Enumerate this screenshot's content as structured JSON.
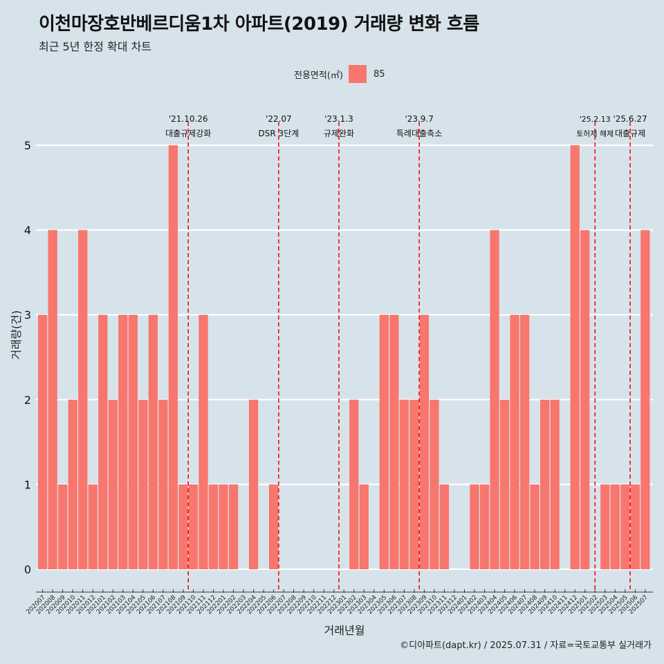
{
  "chart_data": {
    "type": "bar",
    "title": "이천마장호반베르디움1차 아파트(2019) 거래량 변화 흐름",
    "subtitle": "최근 5년 한정 확대 차트",
    "xlabel": "거래년월",
    "ylabel": "거래량(건)",
    "legend": {
      "title": "전용면적(㎡)",
      "placement": "top",
      "entries": [
        {
          "label": "85",
          "color": "#f8766d"
        }
      ]
    },
    "ylim": [
      0,
      5
    ],
    "yticks": [
      0,
      1,
      2,
      3,
      4,
      5
    ],
    "grid": true,
    "categories": [
      "202007",
      "202008",
      "202009",
      "202010",
      "202011",
      "202012",
      "202101",
      "202102",
      "202103",
      "202104",
      "202105",
      "202106",
      "202107",
      "202108",
      "202109",
      "202110",
      "202111",
      "202112",
      "202201",
      "202202",
      "202203",
      "202204",
      "202205",
      "202206",
      "202207",
      "202208",
      "202209",
      "202210",
      "202211",
      "202212",
      "202301",
      "202302",
      "202303",
      "202304",
      "202305",
      "202306",
      "202307",
      "202308",
      "202309",
      "202310",
      "202311",
      "202312",
      "202401",
      "202402",
      "202403",
      "202404",
      "202405",
      "202406",
      "202407",
      "202408",
      "202409",
      "202410",
      "202411",
      "202412",
      "202501",
      "202502",
      "202503",
      "202504",
      "202505",
      "202506",
      "202507"
    ],
    "series": [
      {
        "name": "85",
        "color": "#f8766d",
        "values": [
          3,
          4,
          1,
          2,
          4,
          1,
          3,
          2,
          3,
          3,
          2,
          3,
          2,
          5,
          1,
          1,
          3,
          1,
          1,
          1,
          0,
          2,
          0,
          1,
          0,
          0,
          0,
          0,
          0,
          0,
          0,
          2,
          1,
          0,
          3,
          3,
          2,
          2,
          3,
          2,
          1,
          0,
          0,
          1,
          1,
          4,
          2,
          3,
          3,
          1,
          2,
          2,
          0,
          5,
          4,
          0,
          1,
          1,
          1,
          1,
          4
        ]
      }
    ],
    "events": [
      {
        "date": "'21.10.26",
        "label": "대출규제강화",
        "position": 15.0
      },
      {
        "date": "'22.07",
        "label": "DSR 3단계",
        "position": 24.0
      },
      {
        "date": "'23.1.3",
        "label": "규제완화",
        "position": 30.0
      },
      {
        "date": "'23.9.7",
        "label": "특례대출축소",
        "position": 38.0
      },
      {
        "date": "'25.2.13",
        "label": "토허제 해제",
        "position": 55.5,
        "small": true
      },
      {
        "date": "'25.6.27",
        "label": "대출규제",
        "position": 59.0
      }
    ],
    "event_color": "#ee1111"
  },
  "caption": "©디아파트(dapt.kr) / 2025.07.31 / 자료=국토교통부 실거래가"
}
